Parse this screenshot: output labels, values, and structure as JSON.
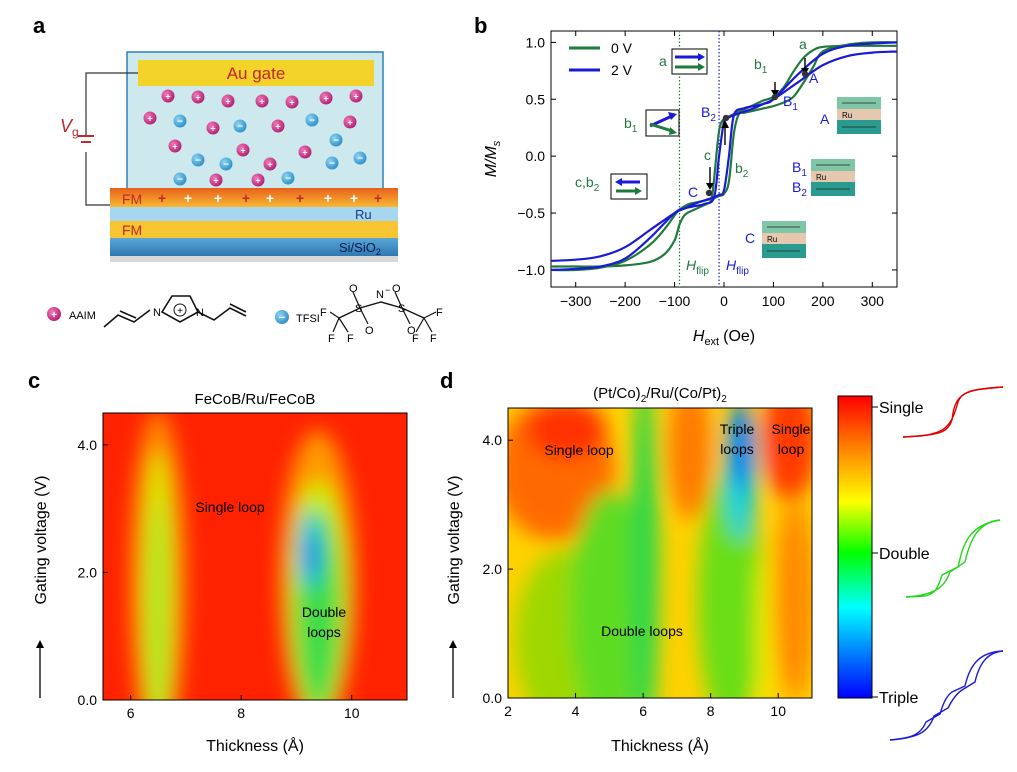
{
  "panel_labels": {
    "a": "a",
    "b": "b",
    "c": "c",
    "d": "d"
  },
  "panel_a": {
    "gate_label": "Au gate",
    "vg_label": "V",
    "vg_sub": "g",
    "fm_top": "FM",
    "ru_label": "Ru",
    "fm_bottom": "FM",
    "substrate": "Si/SiO",
    "substrate_sub": "2",
    "cation_name": "AAIM",
    "anion_name": "TFSI",
    "plus_sign": "+",
    "minus_sign": "−",
    "n_label": "N",
    "s_label": "S",
    "o_label": "O",
    "f_label": "F",
    "amine_label": "N"
  },
  "chart_data": [
    {
      "type": "line",
      "panel": "b",
      "xlabel": "H",
      "xlabel_sub": "ext",
      "xlabel_unit": "(Oe)",
      "ylabel": "M/M",
      "ylabel_sub": "s",
      "xlim": [
        -350,
        350
      ],
      "ylim": [
        -1.15,
        1.1
      ],
      "xticks": [
        "-300",
        "-200",
        "-100",
        "0",
        "100",
        "200",
        "300"
      ],
      "yticks": [
        "-1.0",
        "-0.5",
        "0.0",
        "0.5",
        "1.0"
      ],
      "legend": [
        "0 V",
        "2 V"
      ],
      "colors": {
        "0V": "#1f7a3c",
        "2V": "#1a1ad6"
      },
      "series": [
        {
          "name": "0 V",
          "color": "#1f7a3c",
          "x": [
            -350,
            -300,
            -250,
            -200,
            -150,
            -120,
            -100,
            -90,
            -80,
            -70,
            -60,
            -50,
            -40,
            -30,
            -25,
            -20,
            -10,
            0,
            10,
            20,
            30,
            40,
            50,
            60,
            70,
            80,
            100,
            120,
            140,
            160,
            180,
            200,
            250,
            300,
            350
          ],
          "y_up": [
            -1.0,
            -1.0,
            -0.98,
            -0.92,
            -0.78,
            -0.64,
            -0.52,
            -0.47,
            -0.44,
            -0.42,
            -0.41,
            -0.4,
            -0.39,
            -0.38,
            -0.37,
            -0.2,
            0.22,
            0.33,
            0.35,
            0.37,
            0.39,
            0.41,
            0.43,
            0.45,
            0.47,
            0.49,
            0.52,
            0.6,
            0.74,
            0.86,
            0.93,
            0.96,
            0.97,
            0.97,
            0.97
          ],
          "y_down": [
            -0.97,
            -0.97,
            -0.97,
            -0.96,
            -0.93,
            -0.86,
            -0.74,
            -0.6,
            -0.52,
            -0.49,
            -0.47,
            -0.45,
            -0.43,
            -0.41,
            -0.39,
            -0.37,
            -0.35,
            -0.33,
            -0.22,
            0.2,
            0.37,
            0.38,
            0.39,
            0.4,
            0.41,
            0.42,
            0.44,
            0.47,
            0.52,
            0.64,
            0.78,
            0.92,
            0.98,
            1.0,
            1.0
          ]
        },
        {
          "name": "2 V",
          "color": "#1a1ad6",
          "x": [
            -350,
            -300,
            -250,
            -200,
            -150,
            -100,
            -80,
            -60,
            -40,
            -20,
            -10,
            0,
            10,
            20,
            40,
            60,
            80,
            100,
            150,
            200,
            250,
            300,
            350
          ],
          "y_up": [
            -1.0,
            -0.99,
            -0.97,
            -0.9,
            -0.72,
            -0.5,
            -0.46,
            -0.44,
            -0.42,
            -0.36,
            0.0,
            0.3,
            0.34,
            0.36,
            0.39,
            0.42,
            0.46,
            0.5,
            0.65,
            0.8,
            0.88,
            0.91,
            0.92
          ],
          "y_down": [
            -0.92,
            -0.91,
            -0.88,
            -0.8,
            -0.65,
            -0.5,
            -0.46,
            -0.42,
            -0.39,
            -0.36,
            -0.34,
            -0.3,
            0.0,
            0.36,
            0.42,
            0.44,
            0.46,
            0.5,
            0.72,
            0.9,
            0.97,
            0.99,
            1.0
          ]
        }
      ],
      "flip_0V": -90,
      "flip_2V": -10,
      "hflip_label": "H",
      "hflip_sub": "flip",
      "annotations": {
        "a_green": "a",
        "b1_green": "b",
        "b1_green_sub": "1",
        "c_green": "c",
        "b2_green": "b",
        "b2_green_sub": "2",
        "A_blue": "A",
        "B1_blue": "B",
        "B1_blue_sub": "1",
        "B2_blue": "B",
        "B2_blue_sub": "2",
        "C_blue": "C",
        "inset_a": "a",
        "inset_b1": "b",
        "inset_b1_sub": "1",
        "inset_cb2": "c,b",
        "inset_cb2_sub": "2",
        "side_A": "A",
        "side_B1": "B",
        "side_B1_sub": "1",
        "side_B2": "B",
        "side_B2_sub": "2",
        "side_C": "C",
        "ru_small": "Ru"
      }
    },
    {
      "type": "heatmap",
      "panel": "c",
      "title": "FeCoB/Ru/FeCoB",
      "xlabel": "Thickness (Å)",
      "ylabel": "Gating voltage (V)",
      "xlim": [
        5.5,
        11
      ],
      "ylim": [
        0,
        4.5
      ],
      "xticks": [
        "6",
        "8",
        "10"
      ],
      "yticks": [
        "0.0",
        "2.0",
        "4.0"
      ],
      "labels": {
        "single": "Single loop",
        "double1": "Double",
        "double2": "loops"
      }
    },
    {
      "type": "heatmap",
      "panel": "d",
      "title": "(Pt/Co)",
      "title_parts": [
        "(Pt/Co)",
        "2",
        "/Ru/(Co/Pt)",
        "2"
      ],
      "xlabel": "Thickness (Å)",
      "ylabel": "Gating voltage (V)",
      "xlim": [
        2,
        11
      ],
      "ylim": [
        0,
        4.5
      ],
      "xticks": [
        "2",
        "4",
        "6",
        "8",
        "10"
      ],
      "yticks": [
        "0.0",
        "2.0",
        "4.0"
      ],
      "labels": {
        "single": "Single loop",
        "double": "Double loops",
        "triple1": "Triple",
        "triple2": "loops",
        "single_r1": "Single",
        "single_r2": "loop"
      }
    }
  ],
  "colorbar": {
    "top": "Single",
    "middle": "Double",
    "bottom": "Triple"
  }
}
